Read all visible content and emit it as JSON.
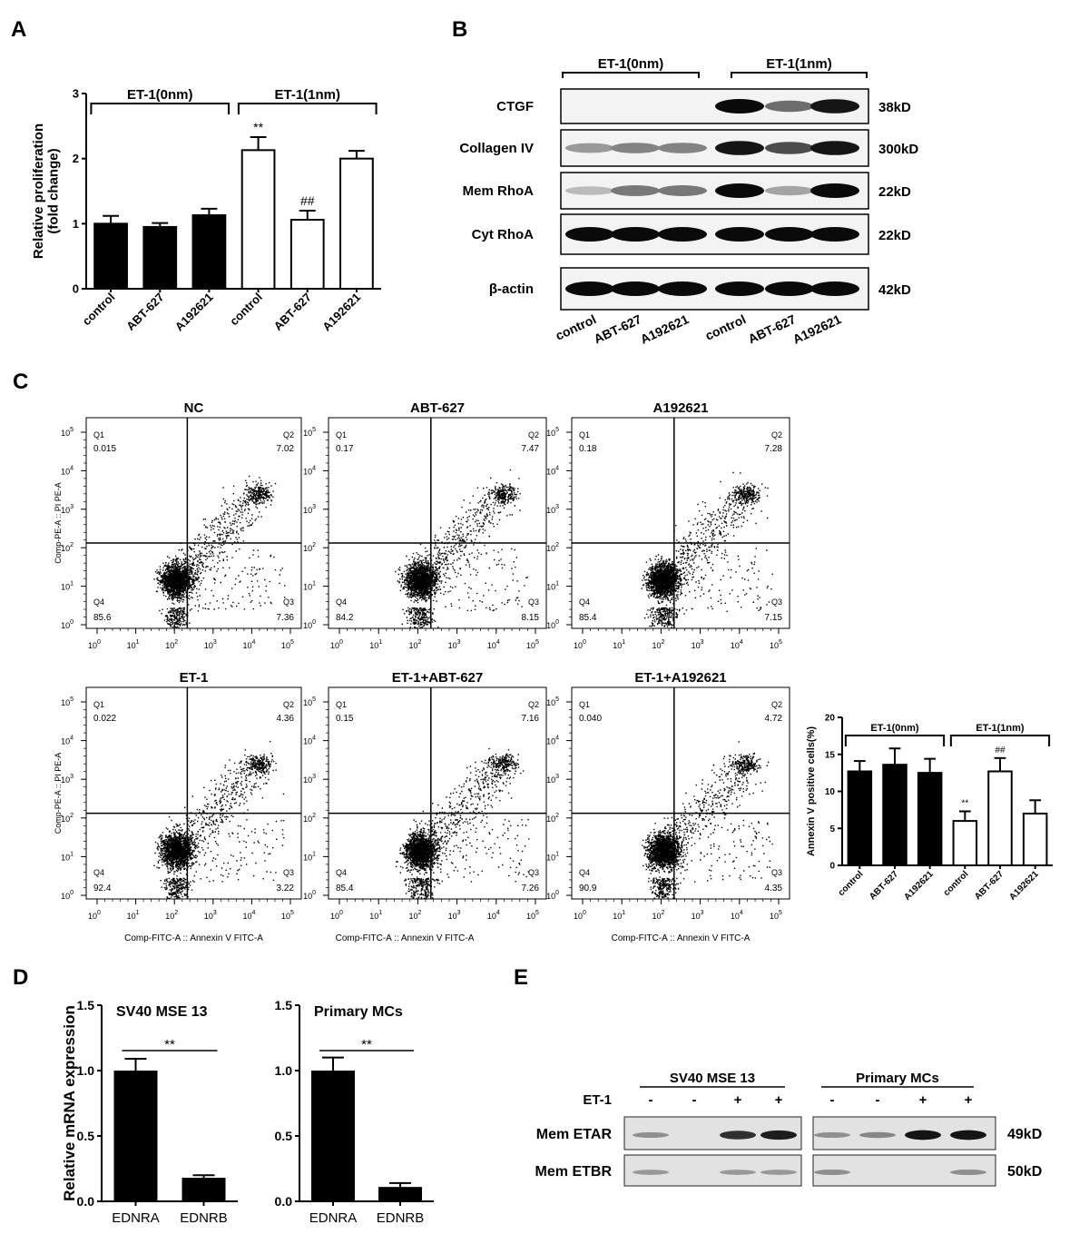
{
  "panels": {
    "A": {
      "letter": "A",
      "chart_data": {
        "type": "bar",
        "ylabel": "Relative proliferation\n(fold change)",
        "ylim": [
          0,
          3
        ],
        "yticks": [
          "0",
          "1",
          "2",
          "3"
        ],
        "categories": [
          "control",
          "ABT-627",
          "A192621",
          "control",
          "ABT-627",
          "A192621"
        ],
        "values": [
          1.0,
          0.95,
          1.13,
          2.13,
          1.06,
          2.0
        ],
        "errors": [
          0.12,
          0.06,
          0.1,
          0.2,
          0.14,
          0.12
        ],
        "fill": [
          "black",
          "black",
          "black",
          "white",
          "white",
          "white"
        ],
        "groups": [
          {
            "label": "ET-1(0nm)",
            "from": 0,
            "to": 2
          },
          {
            "label": "ET-1(1nm)",
            "from": 3,
            "to": 5
          }
        ],
        "annotations": [
          {
            "index": 3,
            "text": "**"
          },
          {
            "index": 4,
            "text": "##"
          }
        ]
      }
    },
    "B": {
      "letter": "B",
      "groups": [
        "ET-1(0nm)",
        "ET-1(1nm)"
      ],
      "rows": [
        {
          "label": "CTGF",
          "size": "38kD",
          "intensity": [
            0.0,
            0.0,
            0.0,
            1.0,
            0.55,
            0.95
          ]
        },
        {
          "label": "Collagen IV",
          "size": "300kD",
          "intensity": [
            0.35,
            0.45,
            0.45,
            0.95,
            0.7,
            0.95
          ]
        },
        {
          "label": "Mem RhoA",
          "size": "22kD",
          "intensity": [
            0.2,
            0.5,
            0.5,
            1.0,
            0.3,
            1.0
          ]
        },
        {
          "label": "Cyt RhoA",
          "size": "22kD",
          "intensity": [
            1,
            1,
            1,
            1,
            1,
            1
          ]
        },
        {
          "label": "β-actin",
          "size": "42kD",
          "intensity": [
            1,
            1,
            1,
            1,
            1,
            1
          ]
        }
      ],
      "lanes": [
        "control",
        "ABT-627",
        "A192621",
        "control",
        "ABT-627",
        "A192621"
      ]
    },
    "C": {
      "letter": "C",
      "plots": [
        {
          "title": "NC",
          "q1": "0.015",
          "q2": "7.02",
          "q3": "7.36",
          "q4": "85.6"
        },
        {
          "title": "ABT-627",
          "q1": "0.17",
          "q2": "7.47",
          "q3": "8.15",
          "q4": "84.2"
        },
        {
          "title": "A192621",
          "q1": "0.18",
          "q2": "7.28",
          "q3": "7.15",
          "q4": "85.4"
        },
        {
          "title": "ET-1",
          "q1": "0.022",
          "q2": "4.36",
          "q3": "3.22",
          "q4": "92.4"
        },
        {
          "title": "ET-1+ABT-627",
          "q1": "0.15",
          "q2": "7.16",
          "q3": "7.26",
          "q4": "85.4"
        },
        {
          "title": "ET-1+A192621",
          "q1": "0.040",
          "q2": "4.72",
          "q3": "4.35",
          "q4": "90.9"
        }
      ],
      "quadrant_names": [
        "Q1",
        "Q2",
        "Q3",
        "Q4"
      ],
      "y_axis_label": "Comp-PE-A :: PI PE-A",
      "x_axis_label": "Comp-FITC-A :: Annexin V FITC-A",
      "decade_ticks": [
        "0",
        "1",
        "2",
        "3",
        "4",
        "5"
      ],
      "bar": {
        "chart_data": {
          "type": "bar",
          "ylabel": "Annexin V positive cells(%)",
          "ylim": [
            0,
            20
          ],
          "yticks": [
            "0",
            "5",
            "10",
            "15",
            "20"
          ],
          "categories": [
            "control",
            "ABT-627",
            "A192621",
            "control",
            "ABT-627",
            "A192621"
          ],
          "values": [
            12.7,
            13.6,
            12.5,
            6.0,
            12.7,
            7.0
          ],
          "errors": [
            1.4,
            2.2,
            1.9,
            1.3,
            1.8,
            1.8
          ],
          "fill": [
            "black",
            "black",
            "black",
            "white",
            "white",
            "white"
          ],
          "groups": [
            {
              "label": "ET-1(0nm)",
              "from": 0,
              "to": 2
            },
            {
              "label": "ET-1(1nm)",
              "from": 3,
              "to": 5
            }
          ],
          "annotations": [
            {
              "index": 3,
              "text": "**"
            },
            {
              "index": 4,
              "text": "##"
            }
          ]
        }
      }
    },
    "D": {
      "letter": "D",
      "ylabel": "Relative mRNA expression",
      "charts": [
        {
          "title": "SV40 MSE 13",
          "categories": [
            "EDNRA",
            "EDNRB"
          ],
          "values": [
            1.0,
            0.18
          ],
          "errors": [
            0.09,
            0.02
          ],
          "ylim": [
            0,
            1.5
          ],
          "yticks": [
            "0.0",
            "0.5",
            "1.0",
            "1.5"
          ],
          "sig": "**"
        },
        {
          "title": "Primary MCs",
          "categories": [
            "EDNRA",
            "EDNRB"
          ],
          "values": [
            1.0,
            0.11
          ],
          "errors": [
            0.1,
            0.03
          ],
          "ylim": [
            0,
            1.5
          ],
          "yticks": [
            "0.0",
            "0.5",
            "1.0",
            "1.5"
          ],
          "sig": "**"
        }
      ]
    },
    "E": {
      "letter": "E",
      "groups": [
        "SV40 MSE 13",
        "Primary MCs"
      ],
      "treatment_label": "ET-1",
      "treatment": [
        "-",
        "-",
        "+",
        "+",
        "-",
        "-",
        "+",
        "+"
      ],
      "rows": [
        {
          "label": "Mem ETAR",
          "size": "49kD",
          "intensity": [
            0.3,
            0.0,
            0.8,
            0.9,
            0.3,
            0.35,
            0.95,
            0.95
          ]
        },
        {
          "label": "Mem ETBR",
          "size": "50kD",
          "intensity": [
            0.25,
            0.0,
            0.25,
            0.25,
            0.3,
            0.0,
            0.0,
            0.3
          ]
        }
      ]
    }
  }
}
